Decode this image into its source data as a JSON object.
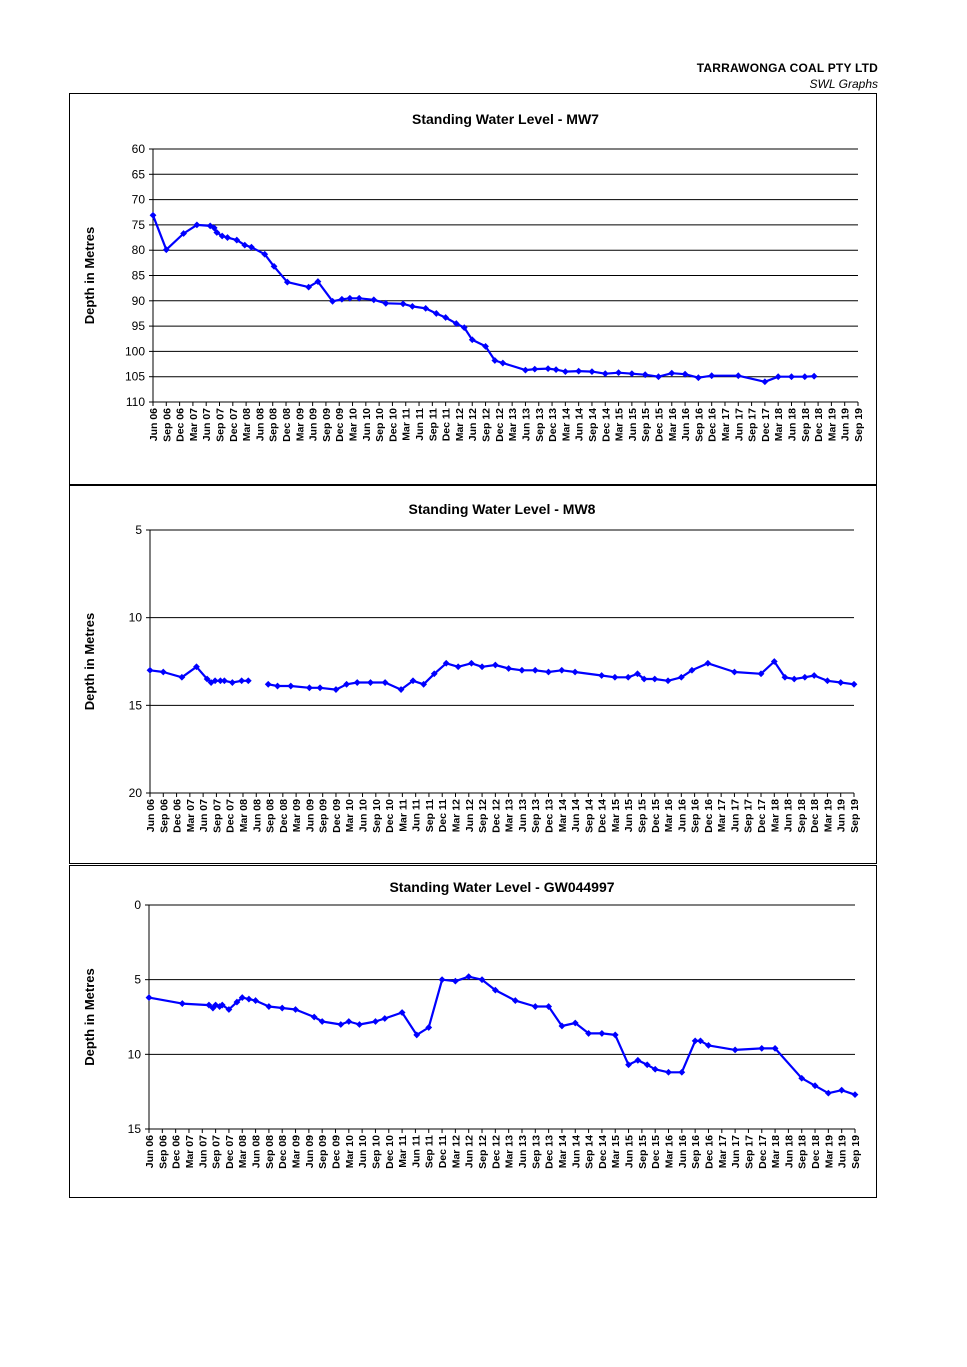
{
  "header": {
    "company": "TARRAWONGA COAL PTY LTD",
    "subtitle": "SWL Graphs"
  },
  "colors": {
    "series": "#0000ff",
    "grid": "#000000",
    "axis": "#000000"
  },
  "chart_data": [
    {
      "type": "line",
      "title": "Standing Water Level - MW7",
      "ylabel": "Depth in Metres",
      "xlabel": "",
      "ylim": [
        110,
        60
      ],
      "y_reversed": true,
      "yticks": [
        60,
        65,
        70,
        75,
        80,
        85,
        90,
        95,
        100,
        105,
        110
      ],
      "grid": true,
      "categories": [
        "Jun 06",
        "Sep 06",
        "Dec 06",
        "Mar 07",
        "Jun 07",
        "Sep 07",
        "Dec 07",
        "Mar 08",
        "Jun 08",
        "Sep 08",
        "Dec 08",
        "Mar 09",
        "Jun 09",
        "Sep 09",
        "Dec 09",
        "Mar 10",
        "Jun 10",
        "Sep 10",
        "Dec 10",
        "Mar 11",
        "Jun 11",
        "Sep 11",
        "Dec 11",
        "Mar 12",
        "Jun 12",
        "Sep 12",
        "Dec 12",
        "Mar 13",
        "Jun 13",
        "Sep 13",
        "Dec 13",
        "Mar 14",
        "Jun 14",
        "Sep 14",
        "Dec 14",
        "Mar 15",
        "Jun 15",
        "Sep 15",
        "Dec 15",
        "Mar 16",
        "Jun 16",
        "Sep 16",
        "Dec 16",
        "Mar 17",
        "Jun 17",
        "Sep 17",
        "Dec 17",
        "Mar 18",
        "Jun 18",
        "Sep 18",
        "Dec 18",
        "Mar 19",
        "Jun 19",
        "Sep 19"
      ],
      "series": [
        {
          "x": [
            0,
            1,
            2.3,
            3.3,
            4.3,
            4.6,
            4.8,
            5.2,
            5.6,
            6.3,
            6.9,
            7.4,
            8.4,
            9.1,
            10.1,
            11.7,
            12.4,
            13.5,
            14.2,
            14.8,
            15.5,
            16.6,
            17.5,
            18.8,
            19.5,
            20.5,
            21.3,
            22.0,
            22.8,
            23.4,
            24.0,
            25.0,
            25.7,
            26.3,
            28.0,
            28.7,
            29.7,
            30.3,
            31.0,
            32.0,
            33.0,
            34.0,
            35.0,
            36.0,
            37.0,
            38.0,
            39.0,
            40.0,
            41.0,
            42.0,
            44.0,
            46.0,
            47.0,
            48.0,
            49.0,
            49.7
          ],
          "values": [
            73.1,
            79.9,
            76.7,
            75.0,
            75.2,
            75.6,
            76.5,
            77.2,
            77.5,
            78.0,
            79.0,
            79.4,
            80.8,
            83.2,
            86.3,
            87.3,
            86.2,
            90.1,
            89.7,
            89.5,
            89.5,
            89.8,
            90.5,
            90.6,
            91.1,
            91.5,
            92.5,
            93.3,
            94.5,
            95.3,
            97.7,
            99.0,
            101.8,
            102.3,
            103.7,
            103.5,
            103.4,
            103.6,
            104.0,
            103.9,
            104.0,
            104.4,
            104.2,
            104.4,
            104.6,
            105.0,
            104.3,
            104.5,
            105.2,
            104.8,
            104.8,
            106.0,
            105.0,
            105.0,
            105.0,
            104.9
          ]
        }
      ]
    },
    {
      "type": "line",
      "title": "Standing Water Level - MW8",
      "ylabel": "Depth in Metres",
      "xlabel": "",
      "ylim": [
        20,
        5
      ],
      "y_reversed": true,
      "yticks": [
        5,
        10,
        15,
        20
      ],
      "grid": true,
      "categories": [
        "Jun 06",
        "Sep 06",
        "Dec 06",
        "Mar 07",
        "Jun 07",
        "Sep 07",
        "Dec 07",
        "Mar 08",
        "Jun 08",
        "Sep 08",
        "Dec 08",
        "Mar 09",
        "Jun 09",
        "Sep 09",
        "Dec 09",
        "Mar 10",
        "Jun 10",
        "Sep 10",
        "Dec 10",
        "Mar 11",
        "Jun 11",
        "Sep 11",
        "Dec 11",
        "Mar 12",
        "Jun 12",
        "Sep 12",
        "Dec 12",
        "Mar 13",
        "Jun 13",
        "Sep 13",
        "Dec 13",
        "Mar 14",
        "Jun 14",
        "Sep 14",
        "Dec 14",
        "Mar 15",
        "Jun 15",
        "Sep 15",
        "Dec 15",
        "Mar 16",
        "Jun 16",
        "Sep 16",
        "Dec 16",
        "Mar 17",
        "Jun 17",
        "Sep 17",
        "Dec 17",
        "Mar 18",
        "Jun 18",
        "Sep 18",
        "Dec 18",
        "Mar 19",
        "Jun 19",
        "Sep 19"
      ],
      "series": [
        {
          "x": [
            0,
            1,
            2.4,
            3.5,
            4.3,
            4.6,
            4.9,
            5.3,
            5.6,
            6.2,
            6.9,
            7.4
          ],
          "values": [
            13.0,
            13.1,
            13.4,
            12.8,
            13.5,
            13.7,
            13.6,
            13.6,
            13.6,
            13.7,
            13.6,
            13.6
          ]
        },
        {
          "x": [
            8.9,
            9.6,
            10.6,
            12.0,
            12.8,
            14.0,
            14.8,
            15.6,
            16.6,
            17.7,
            18.9,
            19.8,
            20.6,
            21.4,
            22.3,
            23.2,
            24.2,
            25.0,
            26.0,
            27.0,
            28.0,
            29.0,
            30.0,
            31.0,
            32.0,
            34.0,
            35.0,
            36.0,
            36.7,
            37.2,
            38.0,
            39.0,
            40.0,
            40.8,
            42.0,
            44.0,
            46.0,
            47.0,
            47.8,
            48.5,
            49.3,
            50.0,
            51.0,
            52.0,
            53.0
          ],
          "values": [
            13.8,
            13.9,
            13.9,
            14.0,
            14.0,
            14.1,
            13.8,
            13.7,
            13.7,
            13.7,
            14.1,
            13.6,
            13.8,
            13.2,
            12.6,
            12.8,
            12.6,
            12.8,
            12.7,
            12.9,
            13.0,
            13.0,
            13.1,
            13.0,
            13.1,
            13.3,
            13.4,
            13.4,
            13.2,
            13.5,
            13.5,
            13.6,
            13.4,
            13.0,
            12.6,
            13.1,
            13.2,
            12.5,
            13.4,
            13.5,
            13.4,
            13.3,
            13.6,
            13.7,
            13.8
          ]
        }
      ]
    },
    {
      "type": "line",
      "title": "Standing Water Level - GW044997",
      "ylabel": "Depth in Metres",
      "xlabel": "",
      "ylim": [
        15,
        0
      ],
      "y_reversed": true,
      "yticks": [
        0,
        5,
        10,
        15
      ],
      "grid": true,
      "categories": [
        "Jun 06",
        "Sep 06",
        "Dec 06",
        "Mar 07",
        "Jun 07",
        "Sep 07",
        "Dec 07",
        "Mar 08",
        "Jun 08",
        "Sep 08",
        "Dec 08",
        "Mar 09",
        "Jun 09",
        "Sep 09",
        "Dec 09",
        "Mar 10",
        "Jun 10",
        "Sep 10",
        "Dec 10",
        "Mar 11",
        "Jun 11",
        "Sep 11",
        "Dec 11",
        "Mar 12",
        "Jun 12",
        "Sep 12",
        "Dec 12",
        "Mar 13",
        "Jun 13",
        "Sep 13",
        "Dec 13",
        "Mar 14",
        "Jun 14",
        "Sep 14",
        "Dec 14",
        "Mar 15",
        "Jun 15",
        "Sep 15",
        "Dec 15",
        "Mar 16",
        "Jun 16",
        "Sep 16",
        "Dec 16",
        "Mar 17",
        "Jun 17",
        "Sep 17",
        "Dec 17",
        "Mar 18",
        "Jun 18",
        "Sep 18",
        "Dec 18",
        "Mar 19",
        "Jun 19",
        "Sep 19"
      ],
      "series": [
        {
          "x": [
            0,
            2.5,
            4.5,
            4.8,
            5.0,
            5.3,
            5.5,
            6.0,
            6.6,
            7.0,
            7.5,
            8.0,
            9.0,
            10.0,
            11.0,
            12.4,
            13.0,
            14.4,
            15.0,
            15.8,
            17.0,
            17.7,
            19.0,
            20.1,
            21.0,
            22.0,
            23.0,
            24.0,
            25.0,
            26.0,
            27.5,
            29.0,
            30.0,
            31.0,
            32.0,
            33.0,
            34.0,
            35.0,
            36.0,
            36.7,
            37.4,
            38.0,
            39.0,
            40.0,
            41.0,
            41.4,
            42.0,
            44.0,
            46.0,
            47.0,
            49.0,
            50.0,
            51.0,
            52.0,
            53.0
          ],
          "values": [
            6.2,
            6.6,
            6.7,
            6.9,
            6.7,
            6.8,
            6.7,
            7.0,
            6.5,
            6.2,
            6.3,
            6.4,
            6.8,
            6.9,
            7.0,
            7.5,
            7.8,
            8.0,
            7.8,
            8.0,
            7.8,
            7.6,
            7.2,
            8.7,
            8.2,
            5.0,
            5.1,
            4.8,
            5.0,
            5.7,
            6.4,
            6.8,
            6.8,
            8.1,
            7.9,
            8.6,
            8.6,
            8.7,
            10.7,
            10.4,
            10.7,
            11.0,
            11.2,
            11.2,
            9.1,
            9.1,
            9.4,
            9.7,
            9.6,
            9.6,
            11.6,
            12.1,
            12.6,
            12.4,
            12.7
          ]
        }
      ]
    }
  ]
}
